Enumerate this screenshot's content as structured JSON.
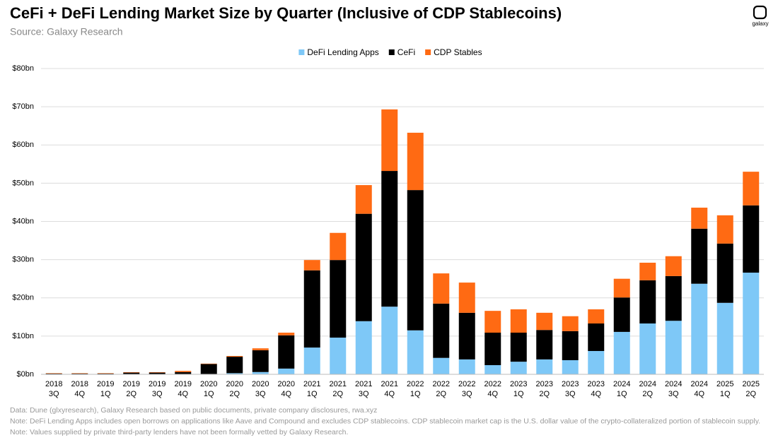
{
  "chart_data": {
    "type": "stacked_bar",
    "title": "CeFi + DeFi Lending Market Size by Quarter (Inclusive of CDP Stablecoins)",
    "subtitle": "Source: Galaxy Research",
    "categories": [
      [
        "2018",
        "3Q"
      ],
      [
        "2018",
        "4Q"
      ],
      [
        "2019",
        "1Q"
      ],
      [
        "2019",
        "2Q"
      ],
      [
        "2019",
        "3Q"
      ],
      [
        "2019",
        "4Q"
      ],
      [
        "2020",
        "1Q"
      ],
      [
        "2020",
        "2Q"
      ],
      [
        "2020",
        "3Q"
      ],
      [
        "2020",
        "4Q"
      ],
      [
        "2021",
        "1Q"
      ],
      [
        "2021",
        "2Q"
      ],
      [
        "2021",
        "3Q"
      ],
      [
        "2021",
        "4Q"
      ],
      [
        "2022",
        "1Q"
      ],
      [
        "2022",
        "2Q"
      ],
      [
        "2022",
        "3Q"
      ],
      [
        "2022",
        "4Q"
      ],
      [
        "2023",
        "1Q"
      ],
      [
        "2023",
        "2Q"
      ],
      [
        "2023",
        "3Q"
      ],
      [
        "2023",
        "4Q"
      ],
      [
        "2024",
        "1Q"
      ],
      [
        "2024",
        "2Q"
      ],
      [
        "2024",
        "3Q"
      ],
      [
        "2024",
        "4Q"
      ],
      [
        "2025",
        "1Q"
      ],
      [
        "2025",
        "2Q"
      ]
    ],
    "series": [
      {
        "name": "DeFi Lending Apps",
        "color": "#7ec8f7",
        "values": [
          0.05,
          0.05,
          0.05,
          0.05,
          0.05,
          0.1,
          0.1,
          0.3,
          0.6,
          1.5,
          7.0,
          9.6,
          13.9,
          17.7,
          11.5,
          4.3,
          3.9,
          2.4,
          3.3,
          3.9,
          3.7,
          6.1,
          11.1,
          13.3,
          14.0,
          23.7,
          18.7,
          26.6
        ]
      },
      {
        "name": "CeFi",
        "color": "#000000",
        "values": [
          0.15,
          0.15,
          0.15,
          0.4,
          0.4,
          0.5,
          2.6,
          4.3,
          5.7,
          8.7,
          20.2,
          20.3,
          28.1,
          35.5,
          36.7,
          14.2,
          12.2,
          8.5,
          7.6,
          7.7,
          7.6,
          7.2,
          9.0,
          11.3,
          11.7,
          14.4,
          15.5,
          17.6
        ]
      },
      {
        "name": "CDP Stables",
        "color": "#ff6a13",
        "values": [
          0.1,
          0.1,
          0.1,
          0.1,
          0.1,
          0.3,
          0.1,
          0.2,
          0.5,
          0.7,
          2.7,
          7.1,
          7.5,
          16.1,
          15.0,
          7.9,
          7.9,
          5.7,
          6.1,
          4.5,
          3.9,
          3.7,
          4.9,
          4.6,
          5.2,
          5.5,
          7.4,
          8.8
        ]
      }
    ],
    "ylim": [
      0,
      80
    ],
    "yticks": [
      {
        "value": 0,
        "label": "$0bn"
      },
      {
        "value": 10,
        "label": "$10bn"
      },
      {
        "value": 20,
        "label": "$20bn"
      },
      {
        "value": 30,
        "label": "$30bn"
      },
      {
        "value": 40,
        "label": "$40bn"
      },
      {
        "value": 50,
        "label": "$50bn"
      },
      {
        "value": 60,
        "label": "$60bn"
      },
      {
        "value": 70,
        "label": "$70bn"
      },
      {
        "value": 80,
        "label": "$80bn"
      }
    ],
    "grid": true,
    "legend": "top",
    "notes": [
      "Data: Dune (glxyresearch), Galaxy Research based on public documents, private company disclosures, rwa.xyz",
      "Note: DeFi Lending Apps includes open borrows on applications like Aave and Compound and excludes CDP stablecoins. CDP stablecoin market cap is the U.S. dollar value of the crypto-collateralized portion of stablecoin supply.",
      "Note: Values supplied by private third-party lenders have not been formally vetted  by Galaxy Research."
    ]
  },
  "logo": {
    "text": "galaxy"
  }
}
